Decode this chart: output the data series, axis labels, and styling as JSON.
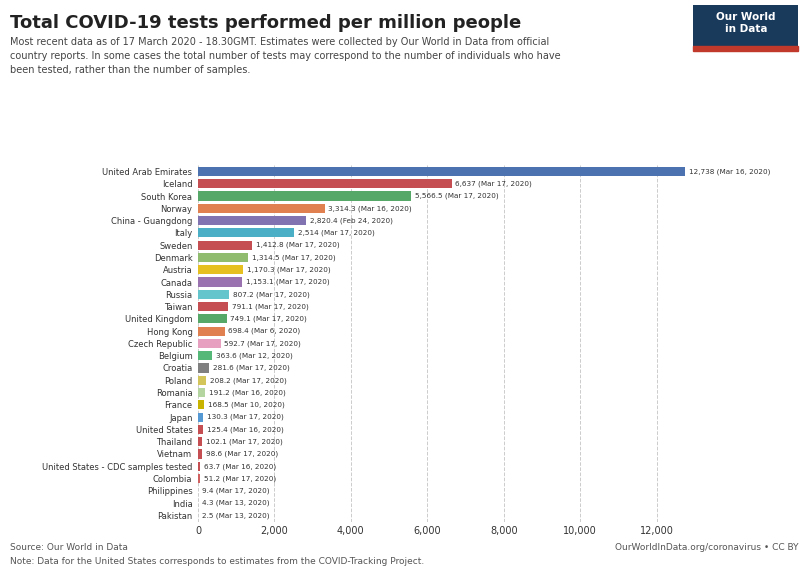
{
  "title": "Total COVID-19 tests performed per million people",
  "subtitle": "Most recent data as of 17 March 2020 - 18.30GMT. Estimates were collected by Our World in Data from official\ncountry reports. In some cases the total number of tests may correspond to the number of individuals who have\nbeen tested, rather than the number of samples.",
  "source_left": "Source: Our World in Data",
  "source_right": "OurWorldInData.org/coronavirus • CC BY",
  "note": "Note: Data for the United States corresponds to estimates from the COVID-Tracking Project.",
  "countries": [
    "United Arab Emirates",
    "Iceland",
    "South Korea",
    "Norway",
    "China - Guangdong",
    "Italy",
    "Sweden",
    "Denmark",
    "Austria",
    "Canada",
    "Russia",
    "Taiwan",
    "United Kingdom",
    "Hong Kong",
    "Czech Republic",
    "Belgium",
    "Croatia",
    "Poland",
    "Romania",
    "France",
    "Japan",
    "United States",
    "Thailand",
    "Vietnam",
    "United States - CDC samples tested",
    "Colombia",
    "Philippines",
    "India",
    "Pakistan"
  ],
  "values": [
    12738,
    6637,
    5566.5,
    3314.3,
    2820.4,
    2514,
    1412.8,
    1314.5,
    1170.3,
    1153.1,
    807.2,
    791.1,
    749.1,
    698.4,
    592.7,
    363.6,
    281.6,
    208.2,
    191.2,
    168.5,
    130.3,
    125.4,
    102.1,
    98.6,
    63.7,
    51.2,
    9.4,
    4.3,
    2.5
  ],
  "labels": [
    "12,738 (Mar 16, 2020)",
    "6,637 (Mar 17, 2020)",
    "5,566.5 (Mar 17, 2020)",
    "3,314.3 (Mar 16, 2020)",
    "2,820.4 (Feb 24, 2020)",
    "2,514 (Mar 17, 2020)",
    "1,412.8 (Mar 17, 2020)",
    "1,314.5 (Mar 17, 2020)",
    "1,170.3 (Mar 17, 2020)",
    "1,153.1 (Mar 17, 2020)",
    "807.2 (Mar 17, 2020)",
    "791.1 (Mar 17, 2020)",
    "749.1 (Mar 17, 2020)",
    "698.4 (Mar 6, 2020)",
    "592.7 (Mar 17, 2020)",
    "363.6 (Mar 12, 2020)",
    "281.6 (Mar 17, 2020)",
    "208.2 (Mar 17, 2020)",
    "191.2 (Mar 16, 2020)",
    "168.5 (Mar 10, 2020)",
    "130.3 (Mar 17, 2020)",
    "125.4 (Mar 16, 2020)",
    "102.1 (Mar 17, 2020)",
    "98.6 (Mar 17, 2020)",
    "63.7 (Mar 16, 2020)",
    "51.2 (Mar 17, 2020)",
    "9.4 (Mar 17, 2020)",
    "4.3 (Mar 13, 2020)",
    "2.5 (Mar 13, 2020)"
  ],
  "colors": [
    "#4c72b0",
    "#c44e52",
    "#55a868",
    "#e08050",
    "#8172b2",
    "#4bafc5",
    "#c44e52",
    "#8fbc6f",
    "#e6c020",
    "#9b72b0",
    "#64c5cd",
    "#c44e52",
    "#55a868",
    "#e08050",
    "#e8a0c0",
    "#55b878",
    "#808080",
    "#d4c55a",
    "#b5d5a0",
    "#c8b400",
    "#5599d4",
    "#c44e52",
    "#c44e52",
    "#c44e52",
    "#c44e52",
    "#d06060",
    "#c44e52",
    "#c44e52",
    "#c44e52"
  ],
  "xlim": [
    0,
    13000
  ],
  "xticks": [
    0,
    2000,
    4000,
    6000,
    8000,
    10000,
    12000
  ],
  "background_color": "#ffffff",
  "bar_height": 0.75
}
